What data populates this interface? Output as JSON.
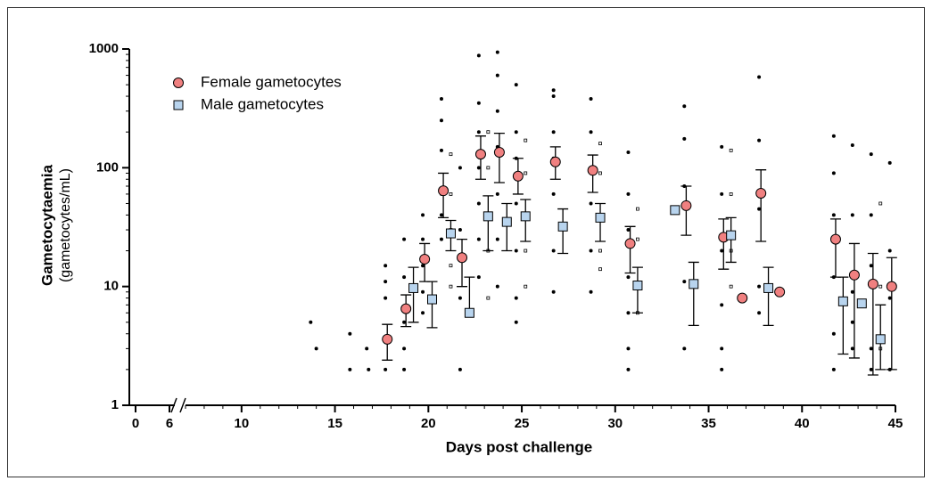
{
  "chart_data": {
    "type": "scatter",
    "y_label": "Gametocytaemia",
    "y_label_units": "(gametocytes/mL)",
    "x_label": "Days post challenge",
    "y_log": true,
    "ylim": [
      1,
      1000
    ],
    "yticks": [
      1,
      10,
      100,
      1000
    ],
    "x_segments": [
      {
        "xlim": [
          0,
          6
        ],
        "xticks": [
          0,
          6
        ]
      },
      {
        "xlim": [
          7,
          45
        ],
        "xticks": [
          10,
          15,
          20,
          25,
          30,
          35,
          40,
          45
        ]
      }
    ],
    "legend": "top-left",
    "series": [
      {
        "name": "Female gametocytes",
        "color": "#f08080",
        "marker": "circle",
        "x": [
          17.8,
          18.8,
          19.8,
          20.8,
          21.8,
          22.8,
          23.8,
          24.8,
          26.8,
          28.8,
          30.8,
          33.8,
          35.8,
          36.8,
          37.8,
          38.8,
          41.8,
          42.8,
          43.8,
          44.8
        ],
        "values": [
          3.6,
          6.5,
          17,
          64,
          17.5,
          130,
          135,
          85,
          112,
          95,
          23,
          48,
          26,
          8,
          61,
          9,
          25,
          12.5,
          10.5,
          10
        ],
        "err_low": [
          2.4,
          4.6,
          11,
          38,
          10,
          80,
          75,
          60,
          80,
          62,
          13,
          27,
          14,
          null,
          24,
          null,
          12,
          2.5,
          1.8,
          2
        ],
        "err_high": [
          4.8,
          8.5,
          23,
          90,
          25,
          185,
          195,
          120,
          150,
          128,
          32,
          70,
          37,
          null,
          96,
          null,
          37,
          23,
          19,
          17.5
        ],
        "dots_x": [
          13.7,
          14,
          15.8,
          15.8,
          16.7,
          16.8,
          17.7,
          17.7,
          17.7,
          17.7,
          18.7,
          18.7,
          18.7,
          18.7,
          18.7,
          19.7,
          19.7,
          19.7,
          19.7,
          19.7,
          20.7,
          20.7,
          20.7,
          20.7,
          20.7,
          20.7,
          21.7,
          21.7,
          21.7,
          21.7,
          22.7,
          22.7,
          22.7,
          22.7,
          22.7,
          22.7,
          22.7,
          23.7,
          23.7,
          23.7,
          23.7,
          23.7,
          23.7,
          23.7,
          24.7,
          24.7,
          24.7,
          24.7,
          24.7,
          24.7,
          24.7,
          26.7,
          26.7,
          26.7,
          26.7,
          26.7,
          26.7,
          26.7,
          28.7,
          28.7,
          28.7,
          28.7,
          28.7,
          28.7,
          30.7,
          30.7,
          30.7,
          30.7,
          30.7,
          30.7,
          30.7,
          33.7,
          33.7,
          33.7,
          33.7,
          33.7,
          35.7,
          35.7,
          35.7,
          35.7,
          35.7,
          35.7,
          37.7,
          37.7,
          37.7,
          37.7,
          37.7,
          41.7,
          41.7,
          41.7,
          41.7,
          41.7,
          41.7,
          42.7,
          42.7,
          42.7,
          42.7,
          42.7,
          43.7,
          43.7,
          43.7,
          43.7,
          43.7,
          44.7,
          44.7,
          44.7,
          44.7
        ],
        "dots_y": [
          5,
          3,
          4,
          2,
          3,
          2,
          15,
          11,
          8,
          2,
          25,
          12,
          5,
          3,
          2,
          40,
          25,
          15,
          9,
          6,
          380,
          250,
          140,
          60,
          40,
          25,
          100,
          30,
          8,
          2,
          880,
          350,
          200,
          100,
          50,
          25,
          12,
          940,
          600,
          300,
          150,
          60,
          25,
          10,
          500,
          200,
          120,
          50,
          20,
          8,
          5,
          450,
          400,
          200,
          120,
          60,
          20,
          9,
          380,
          200,
          100,
          50,
          20,
          9,
          135,
          60,
          30,
          12,
          6,
          3,
          2,
          330,
          175,
          70,
          11,
          3,
          150,
          60,
          20,
          7,
          3,
          2,
          580,
          170,
          45,
          10,
          6,
          185,
          90,
          40,
          12,
          4,
          2,
          155,
          40,
          9,
          5,
          3,
          130,
          40,
          15,
          3,
          2,
          110,
          20,
          8,
          2
        ]
      },
      {
        "name": "Male gametocytes",
        "color": "#b8d4ee",
        "marker": "square",
        "x": [
          19.2,
          20.2,
          21.2,
          22.2,
          23.2,
          24.2,
          25.2,
          27.2,
          29.2,
          31.2,
          33.2,
          34.2,
          36.2,
          38.2,
          42.2,
          43.2,
          44.2
        ],
        "values": [
          9.7,
          7.8,
          28,
          6,
          39,
          35,
          39,
          32,
          38,
          10.2,
          44,
          10.5,
          27,
          9.7,
          7.5,
          7.2,
          3.6
        ],
        "err_low": [
          5,
          4.5,
          20,
          null,
          20,
          20,
          24,
          19,
          24,
          6,
          null,
          4.7,
          16,
          4.7,
          2.7,
          null,
          2
        ],
        "err_high": [
          14.5,
          11,
          36,
          12,
          58,
          50,
          54,
          45,
          50,
          14.5,
          null,
          16,
          38,
          14.5,
          12,
          null,
          7
        ],
        "dots_x": [
          21.2,
          21.2,
          21.2,
          21.2,
          21.2,
          23.2,
          23.2,
          23.2,
          23.2,
          23.2,
          25.2,
          25.2,
          25.2,
          25.2,
          25.2,
          29.2,
          29.2,
          29.2,
          29.2,
          29.2,
          31.2,
          31.2,
          31.2,
          31.2,
          36.2,
          36.2,
          36.2,
          36.2,
          44.2,
          44.2,
          44.2
        ],
        "dots_y": [
          130,
          60,
          30,
          15,
          10,
          200,
          100,
          40,
          20,
          8,
          170,
          90,
          40,
          20,
          10,
          160,
          90,
          40,
          20,
          14,
          45,
          25,
          10,
          6,
          140,
          60,
          20,
          10,
          50,
          10,
          3
        ]
      }
    ]
  }
}
